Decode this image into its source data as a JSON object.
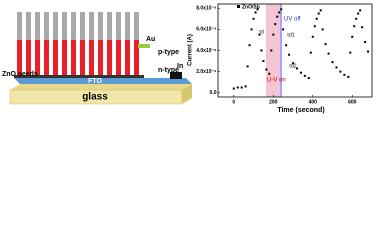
{
  "diagram": {
    "labels": {
      "p_type": "p-type",
      "n_type": "n-type",
      "au": "Au",
      "in": "In",
      "zno_seeds": "ZnO seeds",
      "fto": "FTO",
      "glass": "glass"
    }
  },
  "chart_data": {
    "type": "scatter",
    "xlabel": "Time (second)",
    "ylabel": "Current (A)",
    "annotations": {
      "uv_off": "UV off",
      "uv_on": "U-V on",
      "tau_d": "τd",
      "tau_d1": "τd1",
      "tau_d2": "τd2"
    },
    "xlim": [
      -80,
      700
    ],
    "xticks": [
      0,
      200,
      400,
      600
    ],
    "ylim": [
      -4e-09,
      8.4e-08
    ],
    "yticks": [
      {
        "value": 0,
        "label": "0.0"
      },
      {
        "value": 2e-08,
        "label": "2.0x10⁻⁸"
      },
      {
        "value": 4e-08,
        "label": "4.0x10⁻⁸"
      },
      {
        "value": 6e-08,
        "label": "6.0x10⁻⁸"
      },
      {
        "value": 8e-08,
        "label": "8.0x10⁻⁸"
      }
    ],
    "series": [
      {
        "name": "ZnO/Sb",
        "color": "#000000",
        "x": [
          0,
          20,
          40,
          60,
          70,
          80,
          90,
          100,
          110,
          120,
          130,
          140,
          150,
          165,
          180,
          190,
          200,
          210,
          220,
          230,
          240,
          250,
          265,
          280,
          300,
          320,
          340,
          360,
          380,
          390,
          400,
          410,
          420,
          430,
          440,
          450,
          465,
          480,
          500,
          520,
          540,
          560,
          580,
          590,
          600,
          610,
          620,
          630,
          640,
          650,
          665,
          680
        ],
        "values": [
          4e-09,
          5e-09,
          5e-09,
          6e-09,
          2.5e-08,
          4.5e-08,
          6e-08,
          7e-08,
          7.6e-08,
          7.9e-08,
          5.5e-08,
          4e-08,
          3e-08,
          2.2e-08,
          1.8e-08,
          4e-08,
          5.5e-08,
          6.5e-08,
          7.2e-08,
          7.6e-08,
          7.9e-08,
          6e-08,
          4.5e-08,
          3.6e-08,
          2.8e-08,
          2.3e-08,
          1.9e-08,
          1.6e-08,
          1.4e-08,
          3.8e-08,
          5.3e-08,
          6.3e-08,
          7e-08,
          7.5e-08,
          7.8e-08,
          6e-08,
          4.6e-08,
          3.7e-08,
          2.9e-08,
          2.4e-08,
          2e-08,
          1.7e-08,
          1.5e-08,
          3.8e-08,
          5.3e-08,
          6.3e-08,
          7e-08,
          7.5e-08,
          7.8e-08,
          6.2e-08,
          4.8e-08,
          3.9e-08
        ]
      }
    ]
  }
}
